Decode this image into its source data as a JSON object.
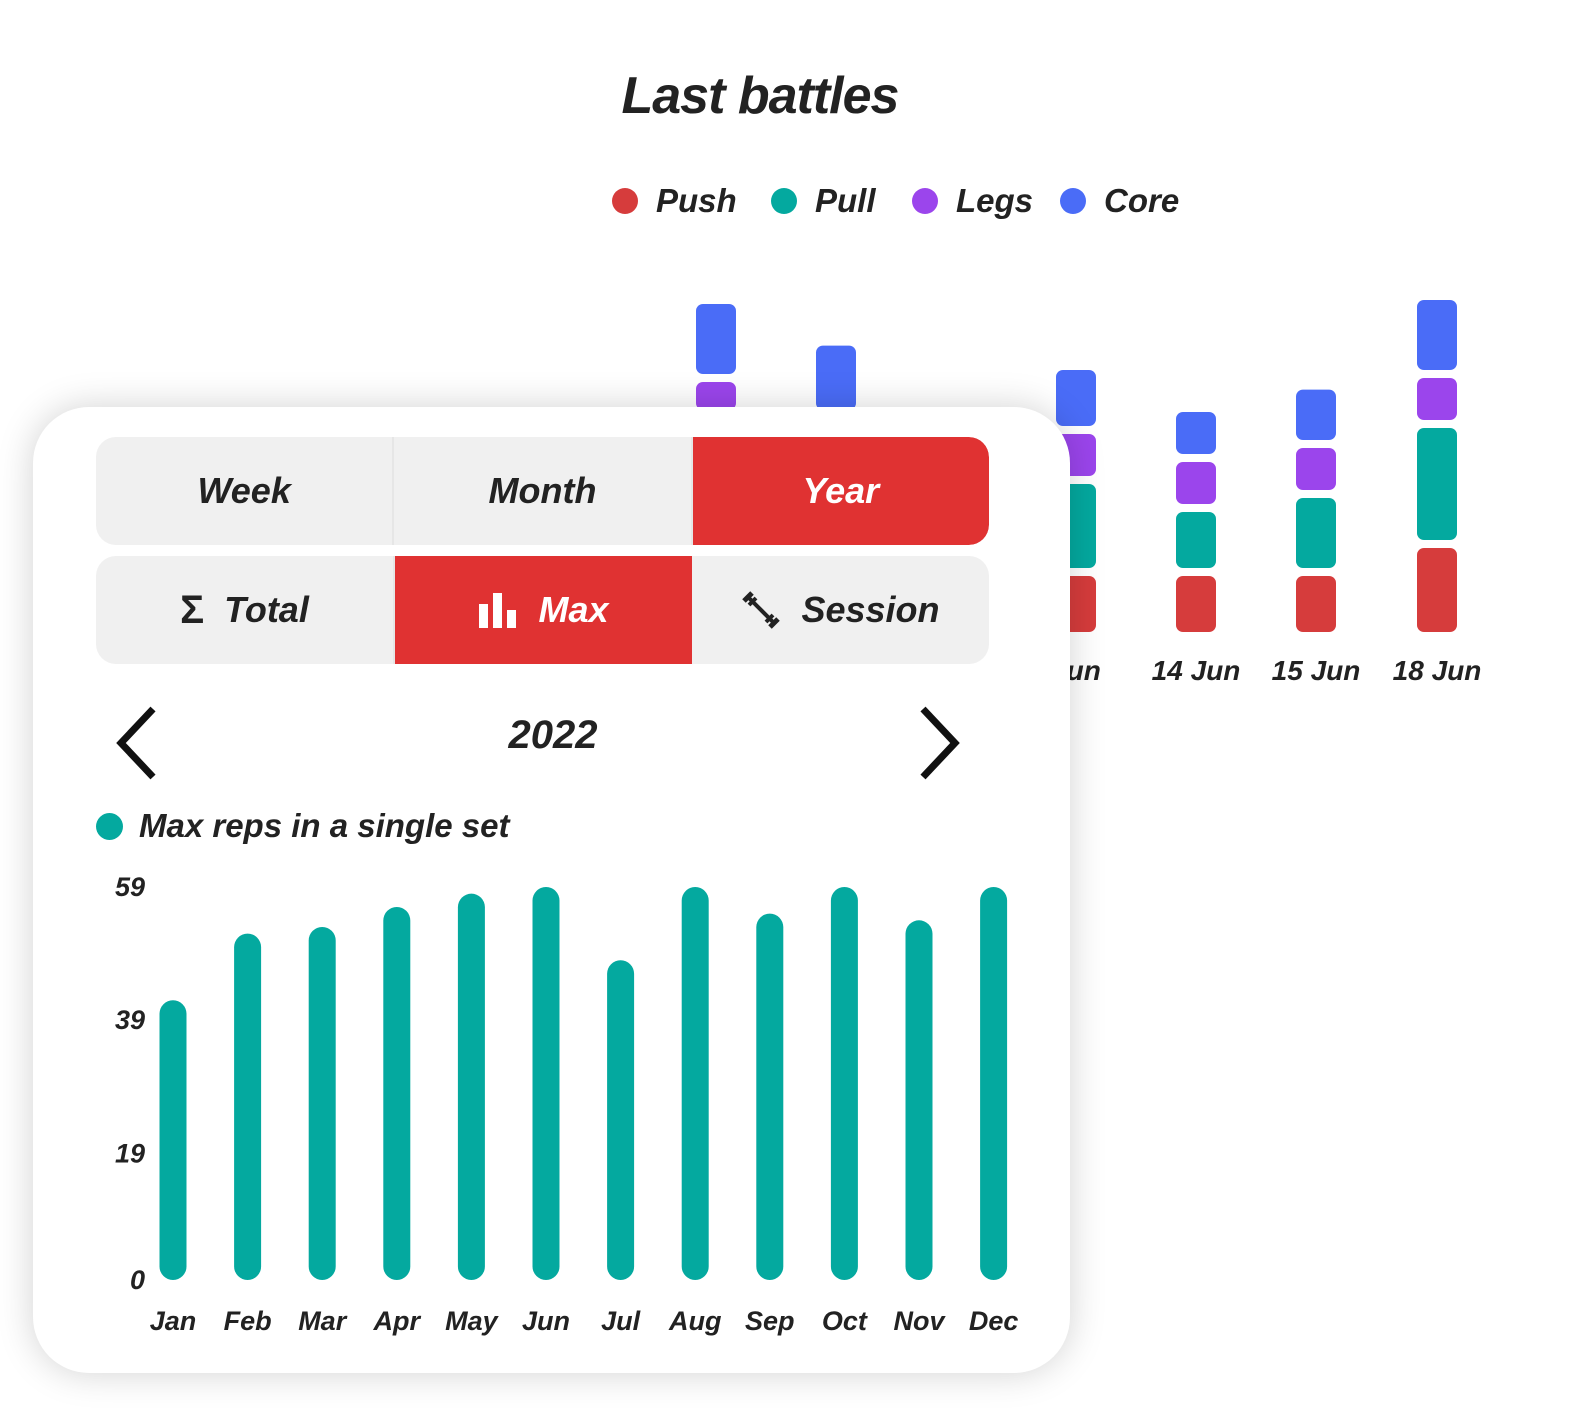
{
  "last_battles": {
    "title": "Last battles",
    "legend": [
      {
        "label": "Push",
        "color": "#d63c3c"
      },
      {
        "label": "Pull",
        "color": "#04a99f"
      },
      {
        "label": "Legs",
        "color": "#9b45ec"
      },
      {
        "label": "Core",
        "color": "#4a6cf7"
      }
    ]
  },
  "filters": {
    "period_tabs": [
      {
        "label": "Week",
        "active": false
      },
      {
        "label": "Month",
        "active": false
      },
      {
        "label": "Year",
        "active": true
      }
    ],
    "metric_tabs": [
      {
        "label": "Total",
        "icon": "sigma-icon",
        "active": false
      },
      {
        "label": "Max",
        "icon": "bar-chart-icon",
        "active": true
      },
      {
        "label": "Session",
        "icon": "dumbbell-icon",
        "active": false
      }
    ]
  },
  "navigation": {
    "year": "2022",
    "prev_icon": "chevron-left-icon",
    "next_icon": "chevron-right-icon"
  },
  "chart_data": [
    {
      "type": "bar",
      "title": "Last battles",
      "stacked": true,
      "categories": [
        "Jun",
        "14 Jun",
        "15 Jun",
        "18 Jun"
      ],
      "series": [
        {
          "name": "Push",
          "values": [
            2,
            2,
            2,
            3
          ]
        },
        {
          "name": "Pull",
          "values": [
            3,
            2,
            2.5,
            4
          ]
        },
        {
          "name": "Legs",
          "values": [
            1.5,
            1.5,
            1.5,
            1.5
          ]
        },
        {
          "name": "Core",
          "values": [
            2,
            1.5,
            1.8,
            2.5
          ]
        }
      ],
      "partially_hidden_bars": [
        {
          "series_visible": [
            "Legs",
            "Core"
          ],
          "values": {
            "Legs": 1,
            "Core": 2.5
          }
        },
        {
          "series_visible": [
            "Core"
          ],
          "values": {
            "Core": 2.3
          }
        }
      ]
    },
    {
      "type": "bar",
      "series_legend": "Max reps in a single set",
      "categories": [
        "Jan",
        "Feb",
        "Mar",
        "Apr",
        "May",
        "Jun",
        "Jul",
        "Aug",
        "Sep",
        "Oct",
        "Nov",
        "Dec"
      ],
      "series": [
        {
          "name": "Max reps in a single set",
          "color": "#04a99f",
          "values": [
            42,
            52,
            53,
            56,
            58,
            59,
            48,
            59,
            55,
            59,
            54,
            59
          ]
        }
      ],
      "yticks": [
        "0",
        "19",
        "39",
        "59"
      ],
      "ylim": [
        0,
        59
      ]
    }
  ]
}
